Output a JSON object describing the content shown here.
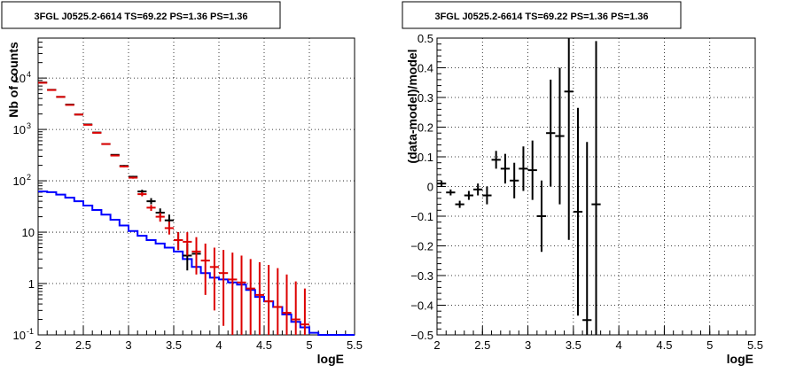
{
  "chart_data": [
    {
      "type": "line",
      "title": "3FGL J0525.2-6614 TS=69.22 PS=1.36 PS=1.36",
      "xlabel": "logE",
      "ylabel": "Nb of counts",
      "xlim": [
        2,
        5.5
      ],
      "ylim": [
        0.1,
        60000
      ],
      "yscale": "log",
      "grid": true,
      "x_ticks": [
        "2",
        "2.5",
        "3",
        "3.5",
        "4",
        "4.5",
        "5",
        "5.5"
      ],
      "y_ticks": [
        {
          "value": 0.1,
          "label": "10",
          "exp": "-1"
        },
        {
          "value": 1,
          "label": "1",
          "exp": ""
        },
        {
          "value": 10,
          "label": "10",
          "exp": ""
        },
        {
          "value": 100,
          "label": "10",
          "exp": "2"
        },
        {
          "value": 1000,
          "label": "10",
          "exp": "3"
        },
        {
          "value": 10000,
          "label": "10",
          "exp": "4"
        }
      ],
      "bin_edges": [
        2.0,
        2.1,
        2.2,
        2.3,
        2.4,
        2.5,
        2.6,
        2.7,
        2.8,
        2.9,
        3.0,
        3.1,
        3.2,
        3.3,
        3.4,
        3.5,
        3.6,
        3.7,
        3.8,
        3.9,
        4.0,
        4.1,
        4.2,
        4.3,
        4.4,
        4.5,
        4.6,
        4.7,
        4.8,
        4.9,
        5.0,
        5.1,
        5.2,
        5.3,
        5.4,
        5.5
      ],
      "series": [
        {
          "style": "step",
          "color": "#0000ff",
          "values": [
            62,
            60,
            54,
            47,
            40,
            33,
            27,
            22,
            17.5,
            13.5,
            10.5,
            8.5,
            7,
            6,
            5,
            4.2,
            3,
            2.1,
            1.6,
            1.3,
            1.2,
            1.05,
            0.95,
            0.75,
            0.55,
            0.45,
            0.35,
            0.25,
            0.18,
            0.14,
            0.11,
            0.1,
            0.1,
            0.1,
            0.1
          ]
        },
        {
          "style": "points",
          "color": "#000000",
          "x": [
            2.05,
            2.15,
            2.25,
            2.35,
            2.45,
            2.55,
            2.65,
            2.75,
            2.85,
            2.95,
            3.05,
            3.15,
            3.25,
            3.35,
            3.45,
            3.55,
            3.65,
            3.75
          ],
          "y": [
            8200,
            5900,
            4300,
            3050,
            1950,
            1250,
            870,
            520,
            320,
            195,
            120,
            62,
            40,
            24,
            17,
            7,
            3.5,
            3.8
          ],
          "err_lo": [
            8000,
            5800,
            4200,
            2990,
            1900,
            1220,
            850,
            505,
            310,
            188,
            115,
            57,
            35,
            20,
            13,
            4.5,
            1.8,
            2.2
          ],
          "err_hi": [
            8400,
            6000,
            4400,
            3110,
            2000,
            1280,
            890,
            535,
            330,
            202,
            125,
            67,
            46,
            29,
            22,
            10,
            6,
            5.8
          ]
        },
        {
          "style": "points",
          "color": "#dd0000",
          "x": [
            2.05,
            2.15,
            2.25,
            2.35,
            2.45,
            2.55,
            2.65,
            2.75,
            2.85,
            2.95,
            3.05,
            3.15,
            3.25,
            3.35,
            3.45,
            3.55,
            3.65,
            3.75,
            3.85,
            3.95,
            4.05,
            4.15,
            4.25,
            4.35,
            4.45,
            4.55,
            4.65,
            4.75,
            4.85,
            4.95
          ],
          "y": [
            8100,
            5850,
            4300,
            3000,
            1950,
            1230,
            860,
            520,
            310,
            190,
            115,
            55,
            30,
            20,
            12,
            7,
            6.5,
            4.2,
            2.8,
            2.1,
            1.6,
            1.2,
            1.05,
            0.8,
            0.6,
            0.45,
            0.35,
            0.27,
            0.2,
            0.16
          ],
          "err_lo": [
            7900,
            5750,
            4200,
            2950,
            1900,
            1200,
            840,
            505,
            300,
            183,
            110,
            50,
            26,
            16,
            9,
            4.5,
            3.5,
            1.5,
            0.6,
            0.3,
            0.15,
            0.1,
            0.1,
            0.1,
            0.1,
            0.1,
            0.1,
            0.1,
            0.1,
            0.1
          ],
          "err_hi": [
            8300,
            5950,
            4400,
            3050,
            2000,
            1260,
            880,
            535,
            320,
            197,
            120,
            60,
            34,
            24,
            16,
            10,
            10,
            8,
            6,
            5,
            4.5,
            4,
            3.5,
            3,
            2.6,
            2.3,
            2,
            1.5,
            1.1,
            0.8
          ]
        }
      ]
    },
    {
      "type": "scatter",
      "title": "3FGL J0525.2-6614 TS=69.22 PS=1.36 PS=1.36",
      "xlabel": "logE",
      "ylabel": "(data-model)/model",
      "xlim": [
        2,
        5.5
      ],
      "ylim": [
        -0.5,
        0.5
      ],
      "grid": true,
      "x_ticks": [
        "2",
        "2.5",
        "3",
        "3.5",
        "4",
        "4.5",
        "5",
        "5.5"
      ],
      "y_ticks": [
        "−0.5",
        "−0.4",
        "−0.3",
        "−0.2",
        "−0.1",
        "0",
        "0.1",
        "0.2",
        "0.3",
        "0.4",
        "0.5"
      ],
      "series": [
        {
          "color": "#000000",
          "x": [
            2.05,
            2.15,
            2.25,
            2.35,
            2.45,
            2.55,
            2.65,
            2.75,
            2.85,
            2.95,
            3.05,
            3.15,
            3.25,
            3.35,
            3.45,
            3.55,
            3.65,
            3.75
          ],
          "y": [
            0.01,
            -0.02,
            -0.06,
            -0.03,
            -0.01,
            -0.03,
            0.09,
            0.06,
            0.02,
            0.06,
            0.055,
            -0.1,
            0.18,
            0.17,
            0.32,
            -0.085,
            -0.45,
            -0.06
          ],
          "err": [
            0.01,
            0.01,
            0.012,
            0.015,
            0.02,
            0.03,
            0.03,
            0.05,
            0.06,
            0.075,
            0.1,
            0.12,
            0.18,
            0.23,
            0.5,
            0.35,
            0.6,
            0.55
          ]
        }
      ]
    }
  ]
}
